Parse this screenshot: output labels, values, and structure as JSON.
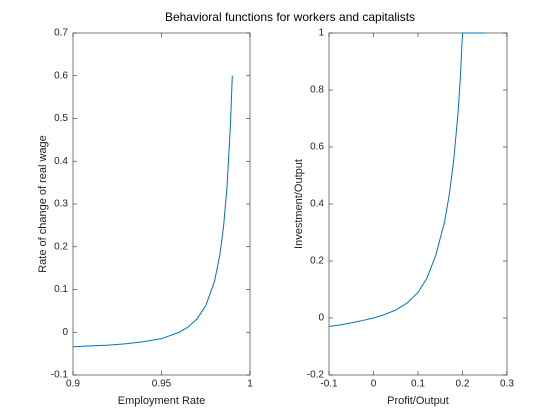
{
  "title": "Behavioral functions for workers and capitalists",
  "chart_data": [
    {
      "type": "line",
      "xlabel": "Employment Rate",
      "ylabel": "Rate of change of real wage",
      "x": [
        0.9,
        0.91,
        0.92,
        0.93,
        0.94,
        0.95,
        0.96,
        0.965,
        0.97,
        0.975,
        0.98,
        0.983,
        0.985,
        0.987,
        0.989,
        0.99
      ],
      "values": [
        -0.034,
        -0.032,
        -0.03,
        -0.027,
        -0.022,
        -0.015,
        0.0,
        0.012,
        0.031,
        0.062,
        0.12,
        0.182,
        0.245,
        0.339,
        0.49,
        0.6
      ],
      "color": "#0072bd",
      "xlim": [
        0.9,
        1
      ],
      "xticks": [
        0.9,
        0.95,
        1
      ],
      "ylim": [
        -0.1,
        0.7
      ],
      "yticks": [
        -0.1,
        0,
        0.1,
        0.2,
        0.3,
        0.4,
        0.5,
        0.6,
        0.7
      ]
    },
    {
      "type": "line",
      "xlabel": "Profit/Output",
      "ylabel": "Investment/Output",
      "x": [
        -0.1,
        -0.075,
        -0.05,
        -0.025,
        0,
        0.025,
        0.05,
        0.075,
        0.1,
        0.12,
        0.14,
        0.16,
        0.17,
        0.18,
        0.19,
        0.195,
        0.2,
        0.25
      ],
      "values": [
        -0.03,
        -0.024,
        -0.017,
        -0.009,
        0,
        0.012,
        0.028,
        0.052,
        0.09,
        0.14,
        0.22,
        0.34,
        0.43,
        0.55,
        0.72,
        0.84,
        1,
        1
      ],
      "color": "#0072bd",
      "xlim": [
        -0.1,
        0.3
      ],
      "xticks": [
        -0.1,
        0,
        0.1,
        0.2,
        0.3
      ],
      "ylim": [
        -0.2,
        1
      ],
      "yticks": [
        -0.2,
        0,
        0.2,
        0.4,
        0.6,
        0.8,
        1
      ]
    }
  ]
}
